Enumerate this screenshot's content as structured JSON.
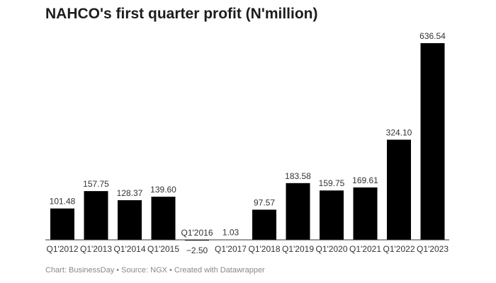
{
  "chart_data": {
    "type": "bar",
    "title": "NAHCO's first quarter profit (N'million)",
    "xlabel": "",
    "ylabel": "",
    "categories": [
      "Q1'2012",
      "Q1'2013",
      "Q1'2014",
      "Q1'2015",
      "Q1'2016",
      "Q1'2017",
      "Q1'2018",
      "Q1'2019",
      "Q1'2020",
      "Q1'2021",
      "Q1'2022",
      "Q1'2023"
    ],
    "values": [
      101.48,
      157.75,
      128.37,
      139.6,
      -2.5,
      1.03,
      97.57,
      183.58,
      159.75,
      169.61,
      324.1,
      636.54
    ],
    "value_labels": [
      "101.48",
      "157.75",
      "128.37",
      "139.60",
      "−2.50",
      "1.03",
      "97.57",
      "183.58",
      "159.75",
      "169.61",
      "324.10",
      "636.54"
    ],
    "ylim": [
      -2.5,
      636.54
    ],
    "grid": false,
    "bar_color": "#000000",
    "footer": "Chart: BusinessDay • Source: NGX • Created with Datawrapper"
  }
}
